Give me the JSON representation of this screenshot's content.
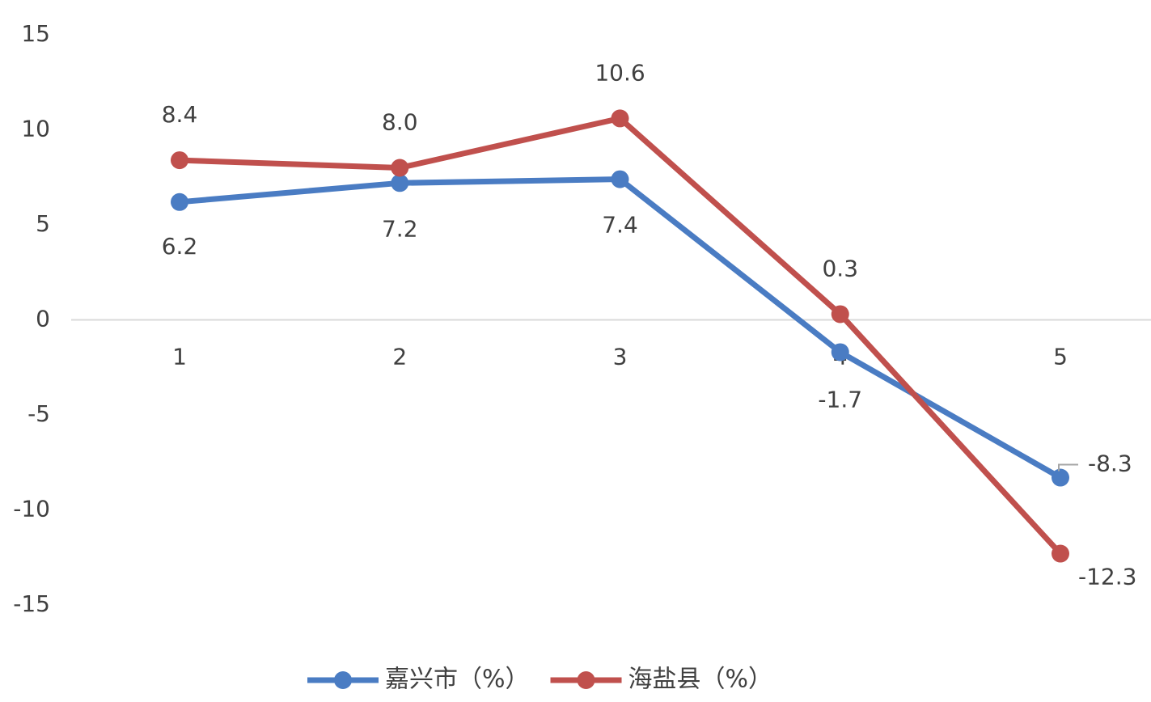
{
  "chart_data": {
    "type": "line",
    "categories": [
      "1",
      "2",
      "3",
      "4",
      "5"
    ],
    "series": [
      {
        "name": "嘉兴市（%）",
        "color": "#4a7cc3",
        "values": [
          6.2,
          7.2,
          7.4,
          -1.7,
          -8.3
        ],
        "value_labels": [
          "6.2",
          "7.2",
          "7.4",
          "-1.7",
          "-8.3"
        ]
      },
      {
        "name": "海盐县（%）",
        "color": "#c0504d",
        "values": [
          8.4,
          8.0,
          10.6,
          0.3,
          -12.3
        ],
        "value_labels": [
          "8.4",
          "8.0",
          "10.6",
          "0.3",
          "-12.3"
        ]
      }
    ],
    "ylim": [
      -15,
      15
    ],
    "yticks": [
      -15,
      -10,
      -5,
      0,
      5,
      10,
      15
    ],
    "grid": false,
    "legend": "bottom"
  }
}
